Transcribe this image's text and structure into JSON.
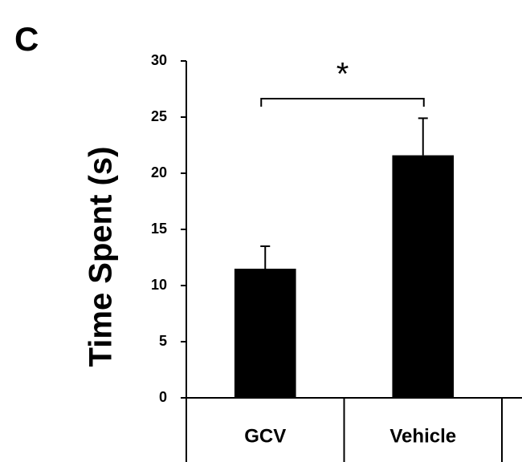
{
  "chart_data": {
    "type": "bar",
    "panel_label": "C",
    "y_label": "Time Spent (s)",
    "categories": [
      "GCV",
      "Vehicle"
    ],
    "values": [
      11.5,
      21.6
    ],
    "errors": [
      2.0,
      3.3
    ],
    "color": "#000000",
    "ylim": [
      0,
      30
    ],
    "yticks": [
      0,
      5,
      10,
      15,
      20,
      25,
      30
    ],
    "annotation": "*"
  }
}
